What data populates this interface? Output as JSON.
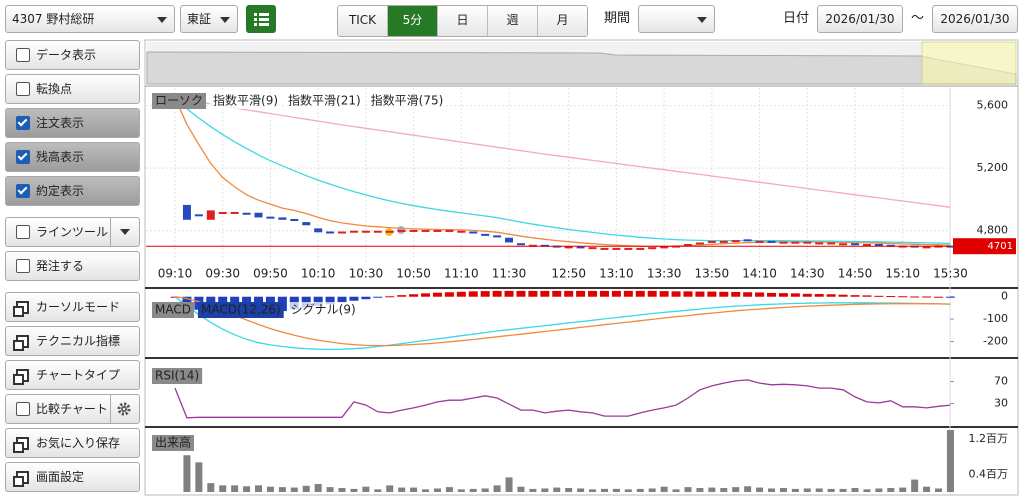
{
  "toolbar": {
    "symbol": "4307 野村総研",
    "market": "東証",
    "tabs": [
      "TICK",
      "5分",
      "日",
      "週",
      "月"
    ],
    "active_tab": 1,
    "period_label": "期間",
    "date_label": "日付",
    "date_from": "2026/01/30",
    "separator": "～",
    "date_to": "2026/01/30"
  },
  "side_menu": [
    {
      "label": "データ表示",
      "checked": false
    },
    {
      "label": "転換点",
      "checked": false
    },
    {
      "label": "注文表示",
      "checked": true
    },
    {
      "label": "残高表示",
      "checked": true
    },
    {
      "label": "約定表示",
      "checked": true
    },
    {
      "label": "ラインツール",
      "checked": false
    },
    {
      "label": "発注する",
      "checked": false
    },
    {
      "label": "カーソルモード"
    },
    {
      "label": "テクニカル指標"
    },
    {
      "label": "チャートタイプ"
    },
    {
      "label": "比較チャート",
      "checked": false
    },
    {
      "label": "お気に入り保存"
    },
    {
      "label": "画面設定"
    }
  ],
  "chart_data": [
    {
      "type": "candlestick",
      "candle_name": "ローソク",
      "up_color": "#e02020",
      "down_color": "#2848c0",
      "grid": true,
      "categories": [
        "09:10",
        null,
        null,
        null,
        "09:30",
        null,
        null,
        null,
        "09:50",
        null,
        null,
        null,
        "10:10",
        null,
        null,
        null,
        "10:30",
        null,
        null,
        null,
        "10:50",
        null,
        null,
        null,
        "11:10",
        null,
        null,
        null,
        "11:30",
        null,
        null,
        null,
        null,
        "12:50",
        null,
        null,
        null,
        "13:10",
        null,
        null,
        null,
        "13:30",
        null,
        null,
        null,
        "13:50",
        null,
        null,
        null,
        "14:10",
        null,
        null,
        null,
        "14:30",
        null,
        null,
        null,
        "14:50",
        null,
        null,
        null,
        "15:10",
        null,
        null,
        null,
        "15:30"
      ],
      "open": [
        null,
        4965,
        4905,
        4870,
        4920,
        4920,
        4915,
        4915,
        4890,
        4885,
        4875,
        4855,
        4815,
        4795,
        4795,
        4800,
        4800,
        4800,
        4800,
        4800,
        4805,
        4805,
        4805,
        4805,
        4800,
        4795,
        4780,
        4770,
        4755,
        4720,
        4710,
        4710,
        4705,
        4700,
        4700,
        4695,
        4690,
        4690,
        4690,
        4690,
        4690,
        4695,
        4700,
        4710,
        4715,
        4725,
        4735,
        4740,
        4745,
        4735,
        4735,
        4730,
        4730,
        4730,
        4725,
        4725,
        4720,
        4720,
        4715,
        4715,
        4710,
        4705,
        4705,
        4700,
        4700,
        4705
      ],
      "close": [
        null,
        4870,
        4895,
        4930,
        4920,
        4920,
        4910,
        4885,
        4885,
        4870,
        4870,
        4835,
        4790,
        4790,
        4795,
        4800,
        4800,
        4800,
        4800,
        4805,
        4805,
        4805,
        4805,
        4805,
        4800,
        4790,
        4775,
        4765,
        4725,
        4715,
        4710,
        4705,
        4700,
        4700,
        4695,
        4695,
        4690,
        4690,
        4690,
        4690,
        4695,
        4700,
        4705,
        4715,
        4725,
        4735,
        4735,
        4740,
        4735,
        4735,
        4730,
        4730,
        4730,
        4730,
        4725,
        4725,
        4720,
        4715,
        4715,
        4710,
        4705,
        4705,
        4700,
        4700,
        4705,
        4701
      ],
      "series": [
        {
          "name": "指数平滑(9)",
          "color": "#f08a40",
          "values": [
            5650,
            5480,
            5350,
            5230,
            5140,
            5080,
            5030,
            4995,
            4970,
            4945,
            4930,
            4910,
            4885,
            4865,
            4850,
            4840,
            4830,
            4825,
            4820,
            4815,
            4812,
            4810,
            4808,
            4807,
            4805,
            4802,
            4797,
            4790,
            4778,
            4765,
            4755,
            4745,
            4737,
            4730,
            4723,
            4717,
            4712,
            4708,
            4704,
            4701,
            4700,
            4700,
            4701,
            4704,
            4708,
            4713,
            4717,
            4721,
            4724,
            4726,
            4727,
            4728,
            4728,
            4728,
            4728,
            4727,
            4726,
            4724,
            4722,
            4720,
            4718,
            4716,
            4713,
            4711,
            4710,
            4708
          ]
        },
        {
          "name": "指数平滑(21)",
          "color": "#3ad8e8",
          "values": [
            5650,
            5580,
            5520,
            5465,
            5415,
            5368,
            5325,
            5285,
            5248,
            5215,
            5183,
            5152,
            5124,
            5098,
            5073,
            5050,
            5029,
            5009,
            4991,
            4975,
            4960,
            4947,
            4935,
            4924,
            4914,
            4904,
            4894,
            4883,
            4869,
            4855,
            4842,
            4830,
            4819,
            4808,
            4798,
            4789,
            4780,
            4772,
            4765,
            4758,
            4752,
            4747,
            4743,
            4740,
            4738,
            4737,
            4737,
            4737,
            4737,
            4737,
            4736,
            4736,
            4735,
            4735,
            4734,
            4733,
            4732,
            4731,
            4730,
            4729,
            4727,
            4726,
            4724,
            4722,
            4721,
            4719
          ]
        },
        {
          "name": "指数平滑(75)",
          "color": "#f4a8c8",
          "values": [
            5650,
            5637,
            5624,
            5611,
            5598,
            5585,
            5573,
            5561,
            5549,
            5537,
            5525,
            5513,
            5501,
            5489,
            5477,
            5466,
            5455,
            5444,
            5433,
            5422,
            5411,
            5400,
            5389,
            5378,
            5367,
            5356,
            5345,
            5334,
            5323,
            5312,
            5301,
            5290,
            5280,
            5270,
            5260,
            5250,
            5240,
            5230,
            5220,
            5210,
            5200,
            5190,
            5180,
            5170,
            5160,
            5150,
            5140,
            5130,
            5120,
            5110,
            5100,
            5090,
            5080,
            5070,
            5060,
            5050,
            5040,
            5030,
            5020,
            5010,
            5000,
            4990,
            4980,
            4970,
            4960,
            4950
          ]
        }
      ],
      "ylim": [
        4600,
        5700
      ],
      "yticks": [
        {
          "value": 4800,
          "label": "4,800"
        },
        {
          "value": 5200,
          "label": "5,200"
        },
        {
          "value": 5600,
          "label": "5,600"
        }
      ],
      "last_price": 4701,
      "last_color": "#e00000"
    },
    {
      "type": "macd",
      "title": "MACD",
      "grid": false,
      "ylim": [
        -260,
        30
      ],
      "yticks": [
        0,
        -100,
        -200
      ],
      "histogram": {
        "up_color": "#e00000",
        "down_color": "#2040c0",
        "values": [
          0,
          -32,
          -58,
          -75,
          -84,
          -87,
          -86,
          -81,
          -73,
          -64,
          -56,
          -48,
          -40,
          -33,
          -25,
          -18,
          -11,
          -4,
          2,
          7,
          11,
          15,
          18,
          20,
          22,
          24,
          25,
          26,
          26,
          26,
          26,
          26,
          26,
          26,
          26,
          26,
          26,
          26,
          26,
          26,
          26,
          25,
          24,
          24,
          23,
          23,
          22,
          21,
          20,
          19,
          17,
          16,
          15,
          13,
          12,
          11,
          9,
          7,
          6,
          4,
          3,
          2,
          1,
          1,
          0,
          -2
        ]
      },
      "series": [
        {
          "name": "MACD(12,26)",
          "color": "#3ad8e8",
          "values": [
            0,
            -40,
            -80,
            -115,
            -145,
            -170,
            -190,
            -205,
            -215,
            -222,
            -228,
            -232,
            -234,
            -235,
            -234,
            -232,
            -228,
            -222,
            -216,
            -209,
            -202,
            -195,
            -188,
            -181,
            -174,
            -167,
            -160,
            -153,
            -147,
            -141,
            -135,
            -129,
            -123,
            -117,
            -111,
            -105,
            -99,
            -93,
            -87,
            -81,
            -75,
            -70,
            -65,
            -60,
            -55,
            -50,
            -46,
            -42,
            -39,
            -36,
            -34,
            -32,
            -30,
            -29,
            -28,
            -27,
            -27,
            -27,
            -27,
            -28,
            -28,
            -29,
            -30,
            -31,
            -32,
            -33
          ]
        },
        {
          "name": "シグナル(9)",
          "color": "#f08a40",
          "values": [
            0,
            -8,
            -22,
            -40,
            -61,
            -83,
            -104,
            -124,
            -142,
            -158,
            -172,
            -184,
            -194,
            -202,
            -209,
            -214,
            -217,
            -218,
            -218,
            -216,
            -213,
            -210,
            -206,
            -201,
            -196,
            -191,
            -185,
            -179,
            -173,
            -167,
            -161,
            -155,
            -149,
            -143,
            -137,
            -131,
            -125,
            -119,
            -113,
            -107,
            -101,
            -95,
            -89,
            -84,
            -78,
            -73,
            -68,
            -63,
            -59,
            -55,
            -51,
            -48,
            -45,
            -42,
            -40,
            -38,
            -36,
            -34,
            -33,
            -32,
            -31,
            -31,
            -31,
            -31,
            -32,
            -33
          ]
        }
      ]
    },
    {
      "type": "line",
      "title": "RSI(14)",
      "color": "#9a3a9a",
      "grid": false,
      "ylim": [
        0,
        100
      ],
      "yticks": [
        30,
        70
      ],
      "values": [
        58,
        4,
        5,
        5,
        5,
        5,
        5,
        5,
        5,
        5,
        5,
        5,
        5,
        5,
        5,
        33,
        27,
        15,
        13,
        18,
        22,
        27,
        33,
        36,
        36,
        40,
        44,
        40,
        29,
        18,
        18,
        13,
        16,
        18,
        15,
        13,
        7,
        7,
        7,
        13,
        18,
        22,
        27,
        40,
        55,
        62,
        67,
        71,
        73,
        67,
        64,
        65,
        64,
        62,
        58,
        58,
        55,
        42,
        33,
        31,
        35,
        24,
        24,
        22,
        25,
        27
      ]
    },
    {
      "type": "bar",
      "title": "出来高",
      "color": "#808080",
      "grid": false,
      "ylim": [
        0,
        1400000
      ],
      "yticks": [
        {
          "value": 400000,
          "label": "0.4百万"
        },
        {
          "value": 1200000,
          "label": "1.2百万"
        }
      ],
      "values": [
        null,
        830000,
        670000,
        200000,
        150000,
        150000,
        130000,
        150000,
        120000,
        110000,
        100000,
        140000,
        180000,
        110000,
        90000,
        70000,
        120000,
        60000,
        150000,
        100000,
        100000,
        60000,
        80000,
        110000,
        60000,
        70000,
        80000,
        150000,
        330000,
        120000,
        70000,
        80000,
        100000,
        90000,
        80000,
        60000,
        70000,
        70000,
        60000,
        70000,
        80000,
        120000,
        60000,
        110000,
        90000,
        100000,
        90000,
        110000,
        130000,
        100000,
        80000,
        90000,
        70000,
        80000,
        80000,
        70000,
        70000,
        90000,
        60000,
        80000,
        90000,
        100000,
        280000,
        120000,
        80000,
        1400000
      ]
    }
  ]
}
